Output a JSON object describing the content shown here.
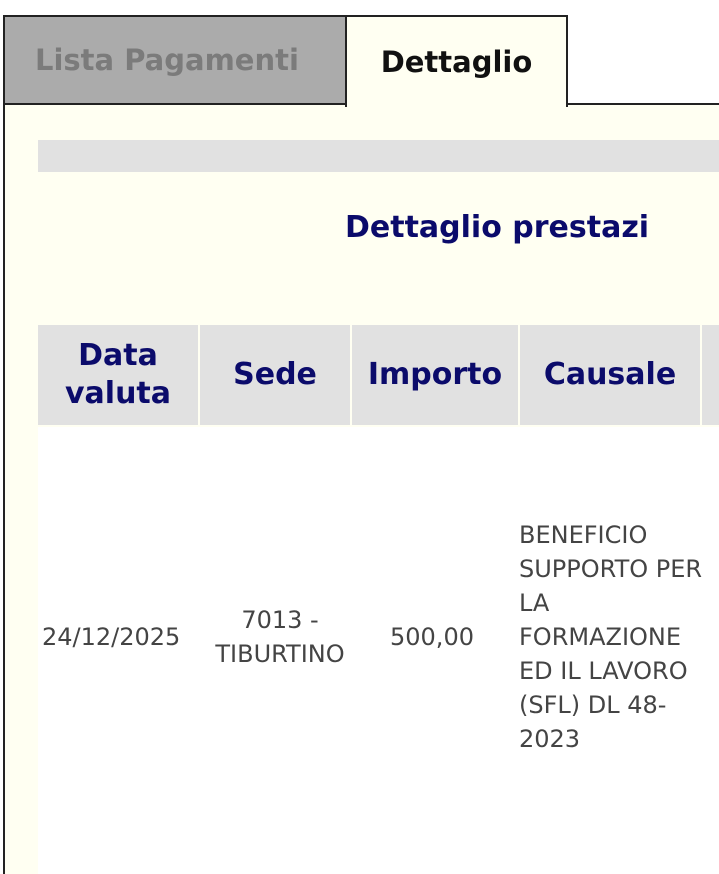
{
  "tabs": [
    {
      "label": "Lista Pagamenti",
      "active": false
    },
    {
      "label": "Dettaglio",
      "active": true
    }
  ],
  "title": "Dettaglio prestazi",
  "table": {
    "headers": [
      "Data valuta",
      "Sede",
      "Importo",
      "Causale"
    ],
    "rows": [
      {
        "data_valuta": "24/12/2025",
        "sede": "7013 - TIBURTINO",
        "importo": "500,00",
        "causale": "BENEFICIO SUPPORTO PER LA FORMAZIONE ED IL LAVORO (SFL) DL 48-2023"
      }
    ]
  }
}
